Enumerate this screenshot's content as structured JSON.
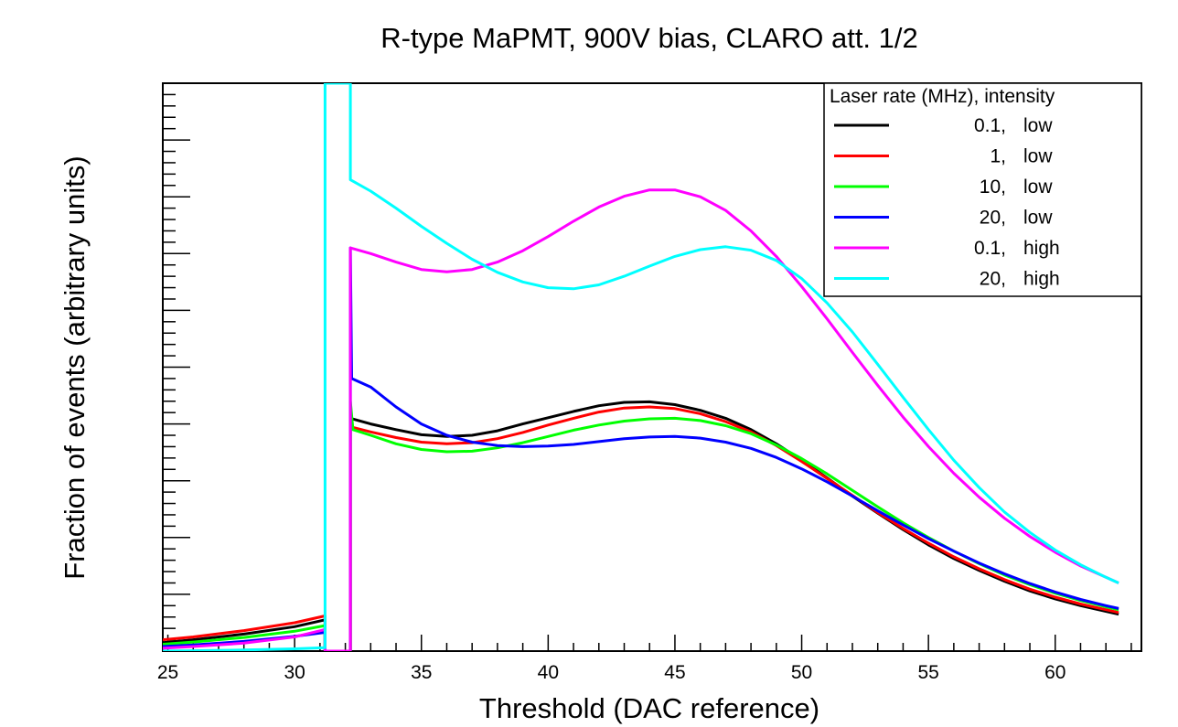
{
  "chart_data": {
    "type": "line",
    "title": "R-type MaPMT, 900V bias, CLARO att. 1/2",
    "xlabel": "Threshold (DAC reference)",
    "ylabel": "Fraction of events (arbitrary units)",
    "xlim": [
      24.8,
      63.4
    ],
    "ylim": [
      0,
      1
    ],
    "x_ticks": [
      25,
      30,
      35,
      40,
      45,
      50,
      55,
      60
    ],
    "y_tick_labels_shown": false,
    "grid": false,
    "legend": {
      "position": "top-right",
      "title": "Laser rate (MHz), intensity"
    },
    "series": [
      {
        "name": "0.1, low",
        "rate": "0.1,",
        "intensity": "low",
        "color": "#000000",
        "points": [
          [
            24.8,
            0.015
          ],
          [
            26,
            0.02
          ],
          [
            28,
            0.03
          ],
          [
            30,
            0.043
          ],
          [
            31.2,
            0.055
          ],
          [
            31.2,
            0.0
          ],
          [
            32.2,
            0.0
          ],
          [
            32.2,
            0.41
          ],
          [
            33,
            0.4
          ],
          [
            34,
            0.39
          ],
          [
            35,
            0.381
          ],
          [
            36,
            0.378
          ],
          [
            37,
            0.38
          ],
          [
            38,
            0.388
          ],
          [
            39,
            0.4
          ],
          [
            40,
            0.411
          ],
          [
            41,
            0.422
          ],
          [
            42,
            0.432
          ],
          [
            43,
            0.438
          ],
          [
            44,
            0.439
          ],
          [
            45,
            0.434
          ],
          [
            46,
            0.424
          ],
          [
            47,
            0.41
          ],
          [
            48,
            0.39
          ],
          [
            49,
            0.365
          ],
          [
            50,
            0.336
          ],
          [
            51,
            0.305
          ],
          [
            52,
            0.273
          ],
          [
            53,
            0.243
          ],
          [
            54,
            0.214
          ],
          [
            55,
            0.187
          ],
          [
            56,
            0.163
          ],
          [
            57,
            0.142
          ],
          [
            58,
            0.123
          ],
          [
            59,
            0.106
          ],
          [
            60,
            0.092
          ],
          [
            61,
            0.08
          ],
          [
            62,
            0.07
          ],
          [
            62.5,
            0.065
          ]
        ]
      },
      {
        "name": "1, low",
        "rate": "1,",
        "intensity": "low",
        "color": "#ff0000",
        "points": [
          [
            24.8,
            0.02
          ],
          [
            26,
            0.025
          ],
          [
            28,
            0.036
          ],
          [
            30,
            0.05
          ],
          [
            31.2,
            0.062
          ],
          [
            31.2,
            0.0
          ],
          [
            32.2,
            0.0
          ],
          [
            32.2,
            0.395
          ],
          [
            33,
            0.386
          ],
          [
            34,
            0.376
          ],
          [
            35,
            0.368
          ],
          [
            36,
            0.365
          ],
          [
            37,
            0.367
          ],
          [
            38,
            0.374
          ],
          [
            39,
            0.385
          ],
          [
            40,
            0.398
          ],
          [
            41,
            0.41
          ],
          [
            42,
            0.421
          ],
          [
            43,
            0.428
          ],
          [
            44,
            0.43
          ],
          [
            45,
            0.427
          ],
          [
            46,
            0.418
          ],
          [
            47,
            0.404
          ],
          [
            48,
            0.386
          ],
          [
            49,
            0.362
          ],
          [
            50,
            0.334
          ],
          [
            51,
            0.304
          ],
          [
            52,
            0.274
          ],
          [
            53,
            0.244
          ],
          [
            54,
            0.216
          ],
          [
            55,
            0.19
          ],
          [
            56,
            0.166
          ],
          [
            57,
            0.145
          ],
          [
            58,
            0.126
          ],
          [
            59,
            0.109
          ],
          [
            60,
            0.095
          ],
          [
            61,
            0.083
          ],
          [
            62,
            0.073
          ],
          [
            62.5,
            0.068
          ]
        ]
      },
      {
        "name": "10, low",
        "rate": "10,",
        "intensity": "low",
        "color": "#00ff00",
        "points": [
          [
            24.8,
            0.012
          ],
          [
            26,
            0.016
          ],
          [
            28,
            0.024
          ],
          [
            30,
            0.035
          ],
          [
            31.2,
            0.045
          ],
          [
            31.2,
            0.0
          ],
          [
            32.2,
            0.0
          ],
          [
            32.2,
            0.44
          ],
          [
            32.3,
            0.39
          ],
          [
            33,
            0.38
          ],
          [
            34,
            0.365
          ],
          [
            35,
            0.355
          ],
          [
            36,
            0.351
          ],
          [
            37,
            0.352
          ],
          [
            38,
            0.358
          ],
          [
            39,
            0.367
          ],
          [
            40,
            0.378
          ],
          [
            41,
            0.389
          ],
          [
            42,
            0.398
          ],
          [
            43,
            0.405
          ],
          [
            44,
            0.409
          ],
          [
            45,
            0.41
          ],
          [
            46,
            0.406
          ],
          [
            47,
            0.397
          ],
          [
            48,
            0.383
          ],
          [
            49,
            0.363
          ],
          [
            50,
            0.339
          ],
          [
            51,
            0.312
          ],
          [
            52,
            0.283
          ],
          [
            53,
            0.254
          ],
          [
            54,
            0.226
          ],
          [
            55,
            0.2
          ],
          [
            56,
            0.176
          ],
          [
            57,
            0.154
          ],
          [
            58,
            0.134
          ],
          [
            59,
            0.117
          ],
          [
            60,
            0.102
          ],
          [
            61,
            0.089
          ],
          [
            62,
            0.078
          ],
          [
            62.5,
            0.073
          ]
        ]
      },
      {
        "name": "20, low",
        "rate": "20,",
        "intensity": "low",
        "color": "#0000ff",
        "points": [
          [
            24.8,
            0.008
          ],
          [
            26,
            0.011
          ],
          [
            28,
            0.017
          ],
          [
            30,
            0.026
          ],
          [
            31.2,
            0.033
          ],
          [
            31.2,
            0.0
          ],
          [
            32.2,
            0.0
          ],
          [
            32.2,
            0.71
          ],
          [
            32.25,
            0.48
          ],
          [
            33,
            0.465
          ],
          [
            34,
            0.43
          ],
          [
            35,
            0.4
          ],
          [
            36,
            0.38
          ],
          [
            37,
            0.368
          ],
          [
            38,
            0.362
          ],
          [
            39,
            0.36
          ],
          [
            40,
            0.361
          ],
          [
            41,
            0.364
          ],
          [
            42,
            0.369
          ],
          [
            43,
            0.374
          ],
          [
            44,
            0.377
          ],
          [
            45,
            0.378
          ],
          [
            46,
            0.375
          ],
          [
            47,
            0.368
          ],
          [
            48,
            0.357
          ],
          [
            49,
            0.341
          ],
          [
            50,
            0.321
          ],
          [
            51,
            0.298
          ],
          [
            52,
            0.273
          ],
          [
            53,
            0.247
          ],
          [
            54,
            0.222
          ],
          [
            55,
            0.198
          ],
          [
            56,
            0.176
          ],
          [
            57,
            0.155
          ],
          [
            58,
            0.136
          ],
          [
            59,
            0.119
          ],
          [
            60,
            0.104
          ],
          [
            61,
            0.091
          ],
          [
            62,
            0.08
          ],
          [
            62.5,
            0.075
          ]
        ]
      },
      {
        "name": "0.1, high",
        "rate": "0.1,",
        "intensity": "high",
        "color": "#ff00ff",
        "points": [
          [
            24.8,
            0.005
          ],
          [
            26,
            0.008
          ],
          [
            28,
            0.014
          ],
          [
            30,
            0.025
          ],
          [
            31.2,
            0.038
          ],
          [
            31.2,
            0.0
          ],
          [
            32.2,
            0.0
          ],
          [
            32.2,
            0.71
          ],
          [
            33,
            0.7
          ],
          [
            34,
            0.685
          ],
          [
            35,
            0.672
          ],
          [
            36,
            0.668
          ],
          [
            37,
            0.672
          ],
          [
            38,
            0.685
          ],
          [
            39,
            0.705
          ],
          [
            40,
            0.73
          ],
          [
            41,
            0.757
          ],
          [
            42,
            0.782
          ],
          [
            43,
            0.801
          ],
          [
            44,
            0.812
          ],
          [
            45,
            0.812
          ],
          [
            46,
            0.8
          ],
          [
            47,
            0.776
          ],
          [
            48,
            0.74
          ],
          [
            49,
            0.695
          ],
          [
            50,
            0.642
          ],
          [
            51,
            0.585
          ],
          [
            52,
            0.526
          ],
          [
            53,
            0.468
          ],
          [
            54,
            0.412
          ],
          [
            55,
            0.36
          ],
          [
            56,
            0.313
          ],
          [
            57,
            0.271
          ],
          [
            58,
            0.234
          ],
          [
            59,
            0.202
          ],
          [
            60,
            0.174
          ],
          [
            61,
            0.15
          ],
          [
            62,
            0.13
          ],
          [
            62.5,
            0.12
          ]
        ]
      },
      {
        "name": "20, high",
        "rate": "20,",
        "intensity": "high",
        "color": "#00ffff",
        "points": [
          [
            24.8,
            0.0
          ],
          [
            28,
            0.002
          ],
          [
            30,
            0.004
          ],
          [
            31.2,
            0.006
          ],
          [
            31.2,
            1.0
          ],
          [
            32.2,
            1.0
          ],
          [
            32.2,
            0.83
          ],
          [
            33,
            0.81
          ],
          [
            34,
            0.78
          ],
          [
            35,
            0.748
          ],
          [
            36,
            0.718
          ],
          [
            37,
            0.69
          ],
          [
            38,
            0.667
          ],
          [
            39,
            0.65
          ],
          [
            40,
            0.64
          ],
          [
            41,
            0.638
          ],
          [
            42,
            0.645
          ],
          [
            43,
            0.66
          ],
          [
            44,
            0.678
          ],
          [
            45,
            0.695
          ],
          [
            46,
            0.707
          ],
          [
            47,
            0.712
          ],
          [
            48,
            0.706
          ],
          [
            49,
            0.688
          ],
          [
            50,
            0.656
          ],
          [
            51,
            0.613
          ],
          [
            52,
            0.562
          ],
          [
            53,
            0.505
          ],
          [
            54,
            0.447
          ],
          [
            55,
            0.39
          ],
          [
            56,
            0.336
          ],
          [
            57,
            0.288
          ],
          [
            58,
            0.245
          ],
          [
            59,
            0.209
          ],
          [
            60,
            0.178
          ],
          [
            61,
            0.152
          ],
          [
            62,
            0.13
          ],
          [
            62.5,
            0.12
          ]
        ]
      }
    ]
  }
}
